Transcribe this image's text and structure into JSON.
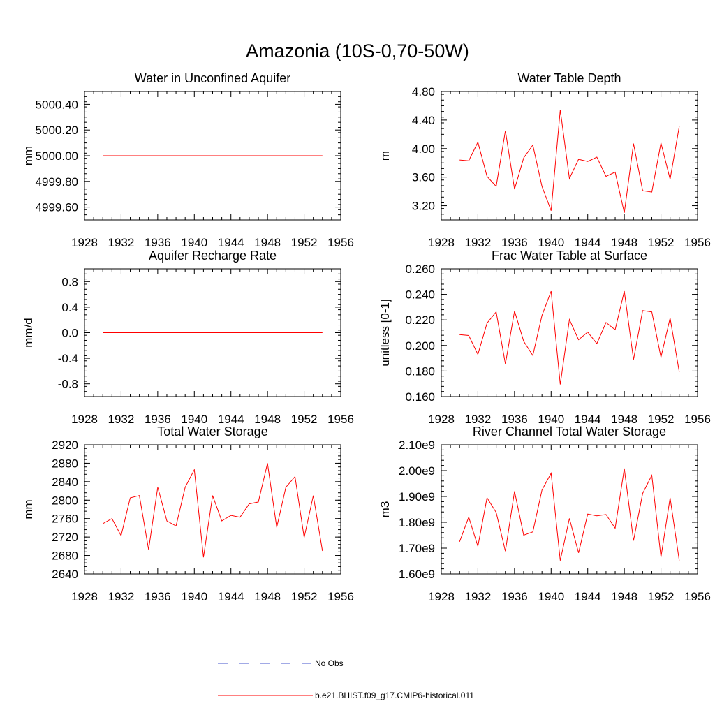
{
  "figure_title": "Amazonia (10S-0,70-50W)",
  "legend": [
    {
      "label": "No Obs",
      "color": "#4455cc",
      "style": "dashed"
    },
    {
      "label": "b.e21.BHIST.f09_g17.CMIP6-historical.011",
      "color": "#ff0000",
      "style": "solid"
    }
  ],
  "colors": {
    "series": "#ff0000",
    "axis": "#000000",
    "background": "#ffffff"
  },
  "chart_data": [
    {
      "type": "line",
      "title": "Water in Unconfined Aquifer",
      "ylabel": "mm",
      "xlabel": "",
      "xlim": [
        1928,
        1956
      ],
      "ylim": [
        4999.5,
        5000.5
      ],
      "xticks": [
        1928,
        1932,
        1936,
        1940,
        1944,
        1948,
        1952,
        1956
      ],
      "yticks": [
        4999.6,
        4999.8,
        5000.0,
        5000.2,
        5000.4
      ],
      "ytick_labels": [
        "4999.60",
        "4999.80",
        "5000.00",
        "5000.20",
        "5000.40"
      ],
      "x": [
        1930,
        1931,
        1932,
        1933,
        1934,
        1935,
        1936,
        1937,
        1938,
        1939,
        1940,
        1941,
        1942,
        1943,
        1944,
        1945,
        1946,
        1947,
        1948,
        1949,
        1950,
        1951,
        1952,
        1953,
        1954
      ],
      "series": [
        {
          "name": "b.e21.BHIST.f09_g17.CMIP6-historical.011",
          "values": [
            5000,
            5000,
            5000,
            5000,
            5000,
            5000,
            5000,
            5000,
            5000,
            5000,
            5000,
            5000,
            5000,
            5000,
            5000,
            5000,
            5000,
            5000,
            5000,
            5000,
            5000,
            5000,
            5000,
            5000,
            5000
          ]
        }
      ]
    },
    {
      "type": "line",
      "title": "Water Table Depth",
      "ylabel": "m",
      "xlabel": "",
      "xlim": [
        1928,
        1956
      ],
      "ylim": [
        3.0,
        4.8
      ],
      "xticks": [
        1928,
        1932,
        1936,
        1940,
        1944,
        1948,
        1952,
        1956
      ],
      "yticks": [
        3.2,
        3.6,
        4.0,
        4.4,
        4.8
      ],
      "ytick_labels": [
        "3.20",
        "3.60",
        "4.00",
        "4.40",
        "4.80"
      ],
      "x": [
        1930,
        1931,
        1932,
        1933,
        1934,
        1935,
        1936,
        1937,
        1938,
        1939,
        1940,
        1941,
        1942,
        1943,
        1944,
        1945,
        1946,
        1947,
        1948,
        1949,
        1950,
        1951,
        1952,
        1953,
        1954
      ],
      "series": [
        {
          "name": "b.e21.BHIST.f09_g17.CMIP6-historical.011",
          "values": [
            3.84,
            3.83,
            4.09,
            3.61,
            3.47,
            4.25,
            3.43,
            3.87,
            4.05,
            3.47,
            3.13,
            4.54,
            3.58,
            3.85,
            3.82,
            3.88,
            3.61,
            3.67,
            3.1,
            4.07,
            3.41,
            3.39,
            4.08,
            3.57,
            4.31
          ]
        }
      ]
    },
    {
      "type": "line",
      "title": "Aquifer Recharge Rate",
      "ylabel": "mm/d",
      "xlabel": "",
      "xlim": [
        1928,
        1956
      ],
      "ylim": [
        -1.0,
        1.0
      ],
      "xticks": [
        1928,
        1932,
        1936,
        1940,
        1944,
        1948,
        1952,
        1956
      ],
      "yticks": [
        -0.8,
        -0.4,
        0.0,
        0.4,
        0.8
      ],
      "ytick_labels": [
        "-0.8",
        "-0.4",
        "0.0",
        "0.4",
        "0.8"
      ],
      "x": [
        1930,
        1931,
        1932,
        1933,
        1934,
        1935,
        1936,
        1937,
        1938,
        1939,
        1940,
        1941,
        1942,
        1943,
        1944,
        1945,
        1946,
        1947,
        1948,
        1949,
        1950,
        1951,
        1952,
        1953,
        1954
      ],
      "series": [
        {
          "name": "b.e21.BHIST.f09_g17.CMIP6-historical.011",
          "values": [
            0,
            0,
            0,
            0,
            0,
            0,
            0,
            0,
            0,
            0,
            0,
            0,
            0,
            0,
            0,
            0,
            0,
            0,
            0,
            0,
            0,
            0,
            0,
            0,
            0
          ]
        }
      ]
    },
    {
      "type": "line",
      "title": "Frac Water Table at Surface",
      "ylabel": "unitless [0-1]",
      "xlabel": "",
      "xlim": [
        1928,
        1956
      ],
      "ylim": [
        0.16,
        0.26
      ],
      "xticks": [
        1928,
        1932,
        1936,
        1940,
        1944,
        1948,
        1952,
        1956
      ],
      "yticks": [
        0.16,
        0.18,
        0.2,
        0.22,
        0.24,
        0.26
      ],
      "ytick_labels": [
        "0.160",
        "0.180",
        "0.200",
        "0.220",
        "0.240",
        "0.260"
      ],
      "x": [
        1930,
        1931,
        1932,
        1933,
        1934,
        1935,
        1936,
        1937,
        1938,
        1939,
        1940,
        1941,
        1942,
        1943,
        1944,
        1945,
        1946,
        1947,
        1948,
        1949,
        1950,
        1951,
        1952,
        1953,
        1954
      ],
      "series": [
        {
          "name": "b.e21.BHIST.f09_g17.CMIP6-historical.011",
          "values": [
            0.2085,
            0.2078,
            0.193,
            0.2175,
            0.2263,
            0.1855,
            0.227,
            0.2033,
            0.1922,
            0.2235,
            0.2425,
            0.1695,
            0.2203,
            0.2045,
            0.2105,
            0.2015,
            0.218,
            0.2123,
            0.2425,
            0.189,
            0.2273,
            0.2263,
            0.1908,
            0.2215,
            0.1793
          ]
        }
      ]
    },
    {
      "type": "line",
      "title": "Total Water Storage",
      "ylabel": "mm",
      "xlabel": "",
      "xlim": [
        1928,
        1956
      ],
      "ylim": [
        2640,
        2920
      ],
      "xticks": [
        1928,
        1932,
        1936,
        1940,
        1944,
        1948,
        1952,
        1956
      ],
      "yticks": [
        2640,
        2680,
        2720,
        2760,
        2800,
        2840,
        2880,
        2920
      ],
      "ytick_labels": [
        "2640",
        "2680",
        "2720",
        "2760",
        "2800",
        "2840",
        "2880",
        "2920"
      ],
      "x": [
        1930,
        1931,
        1932,
        1933,
        1934,
        1935,
        1936,
        1937,
        1938,
        1939,
        1940,
        1941,
        1942,
        1943,
        1944,
        1945,
        1946,
        1947,
        1948,
        1949,
        1950,
        1951,
        1952,
        1953,
        1954
      ],
      "series": [
        {
          "name": "b.e21.BHIST.f09_g17.CMIP6-historical.011",
          "values": [
            2749,
            2760,
            2723,
            2805,
            2810,
            2693,
            2828,
            2755,
            2744,
            2828,
            2866,
            2676,
            2810,
            2755,
            2767,
            2763,
            2792,
            2796,
            2880,
            2741,
            2828,
            2851,
            2719,
            2810,
            2690
          ]
        }
      ]
    },
    {
      "type": "line",
      "title": "River Channel Total Water Storage",
      "ylabel": "m3",
      "xlabel": "",
      "xlim": [
        1928,
        1956
      ],
      "ylim": [
        1600000000.0,
        2100000000.0
      ],
      "xticks": [
        1928,
        1932,
        1936,
        1940,
        1944,
        1948,
        1952,
        1956
      ],
      "yticks": [
        1600000000.0,
        1700000000.0,
        1800000000.0,
        1900000000.0,
        2000000000.0,
        2100000000.0
      ],
      "ytick_labels": [
        "1.60e9",
        "1.70e9",
        "1.80e9",
        "1.90e9",
        "2.00e9",
        "2.10e9"
      ],
      "x": [
        1930,
        1931,
        1932,
        1933,
        1934,
        1935,
        1936,
        1937,
        1938,
        1939,
        1940,
        1941,
        1942,
        1943,
        1944,
        1945,
        1946,
        1947,
        1948,
        1949,
        1950,
        1951,
        1952,
        1953,
        1954
      ],
      "series": [
        {
          "name": "b.e21.BHIST.f09_g17.CMIP6-historical.011",
          "values": [
            1725000000.0,
            1820000000.0,
            1707000000.0,
            1895000000.0,
            1838000000.0,
            1688000000.0,
            1920000000.0,
            1750000000.0,
            1763000000.0,
            1925000000.0,
            1990000000.0,
            1652000000.0,
            1815000000.0,
            1682000000.0,
            1832000000.0,
            1825000000.0,
            1830000000.0,
            1777000000.0,
            2008000000.0,
            1729000000.0,
            1912000000.0,
            1982000000.0,
            1665000000.0,
            1895000000.0,
            1652000000.0
          ]
        }
      ]
    }
  ]
}
